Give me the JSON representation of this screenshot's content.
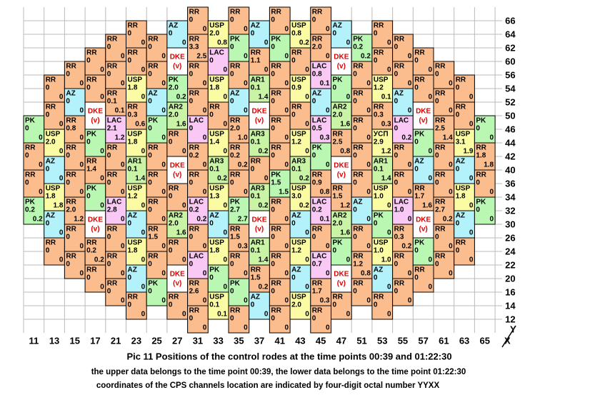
{
  "axes": {
    "x_labels": [
      "11",
      "13",
      "15",
      "17",
      "21",
      "23",
      "25",
      "27",
      "31",
      "33",
      "35",
      "37",
      "41",
      "43",
      "45",
      "47",
      "51",
      "53",
      "55",
      "57",
      "61",
      "63",
      "65"
    ],
    "y_labels": [
      "66",
      "64",
      "62",
      "60",
      "56",
      "54",
      "52",
      "50",
      "46",
      "44",
      "42",
      "40",
      "36",
      "34",
      "32",
      "30",
      "26",
      "24",
      "22",
      "20",
      "16",
      "14",
      "12"
    ],
    "x_name": "X",
    "y_name": "Y"
  },
  "colors": {
    "RR": "#fbbd8e",
    "PK": "#b9f7b3",
    "AZ": "#b3f1fb",
    "USP": "#fbfba3",
    "УСП": "#fbfba3",
    "LAC": "#f9c8f5",
    "AR1": "#c9f3a5",
    "AR2": "#c9f3a5",
    "AR3": "#c9f3a5",
    "DKE": "#ffffff"
  },
  "columns": [
    {
      "cells": [
        null,
        null,
        null,
        null,
        [
          "PK",
          "0",
          "0"
        ],
        [
          "RR",
          "0",
          "0"
        ],
        [
          "RR",
          "0",
          "0"
        ],
        [
          "PK",
          "0.2",
          "0.2"
        ]
      ]
    },
    {
      "cells": [
        null,
        null,
        [
          "RR",
          "0",
          "0"
        ],
        [
          "RR",
          "0",
          "0"
        ],
        [
          "USP",
          "2.0",
          "0"
        ],
        [
          "AZ",
          "0",
          "0"
        ],
        [
          "USP",
          "1.8",
          "1.8"
        ],
        [
          "AZ",
          "0",
          "0"
        ],
        [
          "RR",
          "0",
          "0"
        ]
      ]
    },
    {
      "cells": [
        null,
        null,
        [
          "RR",
          "0",
          "0"
        ],
        [
          "AZ",
          "0",
          "0"
        ],
        [
          "RR",
          "0.8",
          "0"
        ],
        [
          "RR",
          "0",
          "0"
        ],
        [
          "RR",
          "0",
          "0"
        ],
        [
          "RR",
          "2.0",
          "1.2"
        ],
        [
          "RR",
          "0",
          "0"
        ],
        [
          "RR",
          "0",
          "0"
        ]
      ]
    },
    {
      "cells": [
        null,
        [
          "RR",
          "0",
          "0"
        ],
        [
          "RR",
          "0",
          "0"
        ],
        [
          "DKE",
          "(v)"
        ],
        [
          "PK",
          "0",
          "0"
        ],
        [
          "RR",
          "1.4",
          "0"
        ],
        [
          "PK",
          "0",
          "0"
        ],
        [
          "DKE",
          "(v)"
        ],
        [
          "RR",
          "0.2",
          "0.2"
        ],
        [
          "RR",
          "0",
          "0"
        ]
      ]
    },
    {
      "cells": [
        null,
        [
          "RR",
          "0",
          "0"
        ],
        [
          "RR",
          "0",
          "0"
        ],
        [
          "RR",
          "0.1",
          "0.1"
        ],
        [
          "LAC",
          "2.1",
          "1.2"
        ],
        [
          "RR",
          "0",
          "0"
        ],
        [
          "RR",
          "0",
          "0"
        ],
        [
          "LAC",
          "2.8",
          "0"
        ],
        [
          "RR",
          "0",
          "0"
        ],
        [
          "RR",
          "0",
          "0"
        ],
        [
          "RR",
          "0",
          "0"
        ]
      ]
    },
    {
      "cells": [
        [
          "RR",
          "0",
          "0"
        ],
        [
          "RR",
          "0",
          "0"
        ],
        [
          "USP",
          "1.8",
          "0"
        ],
        [
          "RR",
          "0.3",
          "0.6"
        ],
        [
          "USP",
          "1.8",
          "0"
        ],
        [
          "AR1",
          "0.1",
          "1.4"
        ],
        [
          "USP",
          "1.2",
          "0"
        ],
        [
          "AZ",
          "0",
          "0"
        ],
        [
          "USP",
          "1.8",
          "0"
        ],
        [
          "AZ",
          "0",
          "0"
        ],
        [
          "RR",
          "0",
          "0"
        ]
      ]
    },
    {
      "cells": [
        null,
        [
          "RR",
          "0",
          "0"
        ],
        [
          "RR",
          "0",
          "0"
        ],
        [
          "AZ",
          "0",
          "0"
        ],
        [
          "PK",
          "0",
          "0"
        ],
        [
          "RR",
          "0",
          "0"
        ],
        [
          "RR",
          "0",
          "0"
        ],
        [
          "RR",
          "0",
          "0"
        ],
        [
          "RR",
          "1.5",
          "0"
        ],
        [
          "RR",
          "0",
          "0"
        ],
        [
          "PK",
          "0",
          "0"
        ]
      ]
    },
    {
      "cells": [
        [
          "AZ",
          "0",
          "0"
        ],
        [
          "DKE",
          "(v)"
        ],
        [
          "PK",
          "2.0",
          "0.2"
        ],
        [
          "AR2",
          "2.0",
          "1.6"
        ],
        [
          "RR",
          "0",
          "0"
        ],
        [
          "DKE",
          "(v)"
        ],
        [
          "RR",
          "0",
          "0"
        ],
        [
          "AR2",
          "2.0",
          "1.6"
        ],
        [
          "RR",
          "0",
          "0"
        ],
        [
          "DKE",
          "(v)"
        ],
        [
          "RR",
          "0",
          "0"
        ]
      ]
    },
    {
      "cells": [
        [
          "RR",
          "0",
          "0"
        ],
        [
          "RR",
          "3.3",
          "2.5"
        ],
        [
          "RR",
          "0",
          "0"
        ],
        [
          "RR",
          "0",
          "0"
        ],
        [
          "LAC",
          "0",
          "0"
        ],
        [
          "RR",
          "0.2",
          "0"
        ],
        [
          "RR",
          "0",
          "0"
        ],
        [
          "LAC",
          "0.2",
          "0.2"
        ],
        [
          "RR",
          "0",
          "0"
        ],
        [
          "LAC",
          "0",
          "0"
        ],
        [
          "RR",
          "2.6",
          "0"
        ],
        [
          "RR",
          "0",
          "0"
        ]
      ]
    },
    {
      "cells": [
        [
          "USP",
          "2.0",
          "0.8"
        ],
        [
          "LAC",
          "0",
          "0"
        ],
        [
          "USP",
          "1.8",
          "0"
        ],
        [
          "RR",
          "0",
          "0"
        ],
        [
          "USP",
          "1.4",
          "0"
        ],
        [
          "AR3",
          "0.1",
          "0.2"
        ],
        [
          "USP",
          "1.3",
          "0"
        ],
        [
          "AZ",
          "0",
          "0"
        ],
        [
          "USP",
          "1.8",
          "0"
        ],
        [
          "PK",
          "0",
          "0"
        ],
        [
          "USP",
          "0.1",
          "0.1"
        ]
      ]
    },
    {
      "cells": [
        [
          "RR",
          "0",
          "0"
        ],
        [
          "PK",
          "0",
          "0"
        ],
        [
          "RR",
          "0",
          "0"
        ],
        [
          "AZ",
          "0",
          "0"
        ],
        [
          "RR",
          "2.0",
          "1.0"
        ],
        [
          "RR",
          "0.2",
          "0.2"
        ],
        [
          "RR",
          "0",
          "0"
        ],
        [
          "PK",
          "2.7",
          "2.7"
        ],
        [
          "RR",
          "1.5",
          "0.3"
        ],
        [
          "RR",
          "0",
          "0"
        ],
        [
          "PK",
          "0",
          "0"
        ],
        [
          "RR",
          "0",
          "0"
        ]
      ]
    },
    {
      "cells": [
        [
          "AZ",
          "0",
          "0"
        ],
        [
          "RR",
          "1.1",
          "0"
        ],
        [
          "AR1",
          "0.1",
          "1.4"
        ],
        [
          "DKE",
          "(v)"
        ],
        [
          "AR3",
          "0.1",
          "0.2"
        ],
        [
          "RR",
          "0",
          "0"
        ],
        [
          "AR3",
          "0.1",
          "0.2"
        ],
        [
          "DKE",
          "(v)"
        ],
        [
          "AR1",
          "0.1",
          "1.4"
        ],
        [
          "RR",
          "1.5",
          "0.2"
        ],
        [
          "AZ",
          "0",
          "0"
        ]
      ]
    },
    {
      "cells": [
        [
          "RR",
          "0",
          "0"
        ],
        [
          "PK",
          "0",
          "0"
        ],
        [
          "RR",
          "0",
          "0"
        ],
        [
          "RR",
          "0",
          "0"
        ],
        [
          "RR",
          "0",
          "0"
        ],
        [
          "RR",
          "0",
          "0"
        ],
        [
          "PK",
          "1.5",
          "1.5"
        ],
        [
          "RR",
          "0",
          "0"
        ],
        [
          "RR",
          "0",
          "0"
        ],
        [
          "RR",
          "0",
          "0"
        ],
        [
          "RR",
          "0",
          "0"
        ],
        [
          "RR",
          "0",
          "0"
        ]
      ]
    },
    {
      "cells": [
        [
          "USP",
          "0.8",
          "0.2"
        ],
        [
          "RR",
          "0",
          "0"
        ],
        [
          "USP",
          "0.9",
          "0"
        ],
        [
          "RR",
          "0",
          "0"
        ],
        [
          "USP",
          "1.2",
          "0"
        ],
        [
          "AR3",
          "0.1",
          "0.2"
        ],
        [
          "USP",
          "3.0",
          "0.2"
        ],
        [
          "AZ",
          "0",
          "0"
        ],
        [
          "USP",
          "1.2",
          "0"
        ],
        [
          "AZ",
          "0",
          "0"
        ],
        [
          "USP",
          "2.0",
          "0"
        ]
      ]
    },
    {
      "cells": [
        [
          "RR",
          "0",
          "0"
        ],
        [
          "RR",
          "2.0",
          "0"
        ],
        [
          "LAC",
          "0.8",
          "0.1"
        ],
        [
          "AZ",
          "0",
          "0"
        ],
        [
          "LAC",
          "0.5",
          "0.3"
        ],
        [
          "PK",
          "0",
          "0"
        ],
        [
          "RR",
          "0.9",
          "0.8"
        ],
        [
          "LAC",
          "0.2",
          "0.1"
        ],
        [
          "RR",
          "0",
          "0"
        ],
        [
          "LAC",
          "0.7",
          "0"
        ],
        [
          "RR",
          "1.7",
          "0.3"
        ],
        [
          "RR",
          "0",
          "0"
        ]
      ]
    },
    {
      "cells": [
        [
          "AZ",
          "0",
          "0"
        ],
        [
          "DKE",
          "(v)"
        ],
        [
          "PK",
          "0",
          "0"
        ],
        [
          "AR2",
          "2.0",
          "1.6"
        ],
        [
          "RR",
          "2.5",
          "0.8"
        ],
        [
          "DKE",
          "(v)"
        ],
        [
          "RR",
          "1.5",
          "1.2"
        ],
        [
          "AR2",
          "2.0",
          "1.6"
        ],
        [
          "PK",
          "0",
          "0"
        ],
        [
          "DKE",
          "(v)"
        ],
        [
          "RR",
          "0",
          "0"
        ]
      ]
    },
    {
      "cells": [
        null,
        [
          "PK",
          "0.2",
          "0.2"
        ],
        [
          "RR",
          "0",
          "0"
        ],
        [
          "RR",
          "0",
          "0"
        ],
        [
          "RR",
          "0",
          "0"
        ],
        [
          "RR",
          "0",
          "0"
        ],
        [
          "RR",
          "0",
          "0"
        ],
        [
          "AZ",
          "0",
          "0"
        ],
        [
          "RR",
          "0",
          "0"
        ],
        [
          "RR",
          "1.2",
          "0.8"
        ],
        [
          "RR",
          "0",
          "0"
        ]
      ]
    },
    {
      "cells": [
        [
          "RR",
          "0",
          "0"
        ],
        [
          "RR",
          "0",
          "0"
        ],
        [
          "USP",
          "1.2",
          "0.1"
        ],
        [
          "RR",
          "0.3",
          "0.3"
        ],
        [
          "УСП",
          "2.9",
          "1.2"
        ],
        [
          "AR1",
          "0.1",
          "1.4"
        ],
        [
          "USP",
          "1.0",
          "0"
        ],
        [
          "PK",
          "0",
          "0"
        ],
        [
          "USP",
          "1.0",
          "1.0"
        ],
        [
          "AZ",
          "0",
          "0"
        ],
        [
          "RR",
          "0",
          "0"
        ]
      ]
    },
    {
      "cells": [
        null,
        [
          "RR",
          "0",
          "0"
        ],
        [
          "RR",
          "0",
          "0"
        ],
        [
          "AZ",
          "0",
          "0"
        ],
        [
          "LAC",
          "0",
          "0.2"
        ],
        [
          "RR",
          "0",
          "0"
        ],
        [
          "RR",
          "0",
          "0"
        ],
        [
          "LAC",
          "1.0",
          "0"
        ],
        [
          "RR",
          "0.3",
          "0.2"
        ],
        [
          "RR",
          "0",
          "0"
        ],
        [
          "RR",
          "0",
          "0"
        ]
      ]
    },
    {
      "cells": [
        null,
        [
          "RR",
          "0",
          "0"
        ],
        [
          "RR",
          "0",
          "0"
        ],
        [
          "DKE",
          "(v)"
        ],
        [
          "PK",
          "0",
          "0"
        ],
        [
          "AZ",
          "0",
          "0"
        ],
        [
          "RR",
          "1.7",
          "1.6"
        ],
        [
          "DKE",
          "(v)"
        ],
        [
          "PK",
          "0",
          "0"
        ],
        [
          "RR",
          "0",
          "0"
        ]
      ]
    },
    {
      "cells": [
        null,
        null,
        [
          "RR",
          "0",
          "0"
        ],
        [
          "RR",
          "0",
          "0"
        ],
        [
          "RR",
          "2.5",
          "1.4"
        ],
        [
          "RR",
          "0",
          "0"
        ],
        [
          "RR",
          "0",
          "0"
        ],
        [
          "RR",
          "2.7",
          "0.2"
        ],
        [
          "RR",
          "0",
          "0"
        ],
        [
          "RR",
          "0",
          "0"
        ]
      ]
    },
    {
      "cells": [
        null,
        null,
        [
          "RR",
          "0",
          "0"
        ],
        [
          "RR",
          "0",
          "0"
        ],
        [
          "USP",
          "3.1",
          "1.9"
        ],
        [
          "AZ",
          "0",
          "0"
        ],
        [
          "USP",
          "1.8",
          "0"
        ],
        [
          "AZ",
          "0",
          "0"
        ],
        [
          "RR",
          "0",
          "0"
        ]
      ]
    },
    {
      "cells": [
        null,
        null,
        null,
        null,
        [
          "PK",
          "0",
          "0"
        ],
        [
          "RR",
          "1.8",
          "1.8"
        ],
        [
          "RR",
          "0",
          "0"
        ],
        [
          "PK",
          "0",
          "0"
        ]
      ]
    }
  ],
  "caption": {
    "title": "Pic 11 Positions of the control rodes at the time points 00:39 and 01:22:30",
    "line1": "the upper data belongs to the time point 00:39, the lower data belongs to  the time point 01:22:30",
    "line2": "coordinates of the CPS channels location are indicated by four-digit octal number YYXX"
  }
}
